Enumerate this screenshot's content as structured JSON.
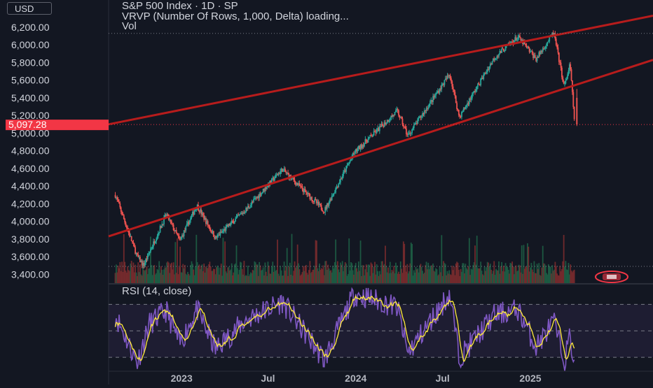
{
  "currency_button": "USD",
  "legend": {
    "title": "S&P 500 Index · 1D · SP",
    "line2": "VRVP (Number Of Rows, 1,000, Delta) loading...",
    "line3": "Vol"
  },
  "rsi_label": "RSI (14, close)",
  "last_price_label": "5,097.28",
  "colors": {
    "background": "#131722",
    "up": "#26a69a",
    "down": "#ef5350",
    "trendline": "#b71c1c",
    "rsi_line": "#7e57c2",
    "rsi_ma": "#ffeb3b",
    "price_tag": "#f23645"
  },
  "chart_data": [
    {
      "type": "candlestick",
      "title": "S&P 500 Index · 1D · SP",
      "ylim": [
        3300,
        6350
      ],
      "y_ticks": [
        "6,200.00",
        "6,000.00",
        "5,800.00",
        "5,600.00",
        "5,400.00",
        "5,200.00",
        "5,000.00",
        "4,800.00",
        "4,600.00",
        "4,400.00",
        "4,200.00",
        "4,000.00",
        "3,800.00",
        "3,600.00",
        "3,400.00"
      ],
      "y_tick_values": [
        6200,
        6000,
        5800,
        5600,
        5400,
        5200,
        5000,
        4800,
        4600,
        4400,
        4200,
        4000,
        3800,
        3600,
        3400
      ],
      "x_ticks": [
        "2023",
        "Jul",
        "2024",
        "Jul",
        "2025"
      ],
      "x_tick_dates": [
        "2023-01-01",
        "2023-07-01",
        "2024-01-01",
        "2024-07-01",
        "2025-01-01"
      ],
      "x_range": [
        "2022-08-01",
        "2025-09-15"
      ],
      "price_path": [
        {
          "date": "2022-08-15",
          "price": 4300
        },
        {
          "date": "2022-09-30",
          "price": 3600
        },
        {
          "date": "2022-10-13",
          "price": 3500
        },
        {
          "date": "2022-11-30",
          "price": 4080
        },
        {
          "date": "2022-12-28",
          "price": 3780
        },
        {
          "date": "2023-02-02",
          "price": 4180
        },
        {
          "date": "2023-03-13",
          "price": 3810
        },
        {
          "date": "2023-05-15",
          "price": 4130
        },
        {
          "date": "2023-07-31",
          "price": 4590
        },
        {
          "date": "2023-10-27",
          "price": 4120
        },
        {
          "date": "2023-12-29",
          "price": 4780
        },
        {
          "date": "2024-03-28",
          "price": 5250
        },
        {
          "date": "2024-04-19",
          "price": 4970
        },
        {
          "date": "2024-07-16",
          "price": 5670
        },
        {
          "date": "2024-08-05",
          "price": 5180
        },
        {
          "date": "2024-10-18",
          "price": 5860
        },
        {
          "date": "2024-12-06",
          "price": 6090
        },
        {
          "date": "2025-01-13",
          "price": 5840
        },
        {
          "date": "2025-02-19",
          "price": 6140
        },
        {
          "date": "2025-03-13",
          "price": 5520
        },
        {
          "date": "2025-03-25",
          "price": 5780
        },
        {
          "date": "2025-04-04",
          "price": 5100
        }
      ],
      "last_price": 5097.28,
      "trendlines": [
        {
          "name": "upper channel",
          "from": {
            "date": "2022-08-01",
            "price": 5100
          },
          "to": {
            "date": "2025-09-15",
            "price": 6330
          }
        },
        {
          "name": "lower channel",
          "from": {
            "date": "2022-08-01",
            "price": 3830
          },
          "to": {
            "date": "2025-09-15",
            "price": 5830
          }
        }
      ],
      "dotted_levels": [
        6130,
        5097.28,
        3490
      ],
      "volume": {
        "series_name": "Vol",
        "relative_range": [
          0.0,
          1.0
        ]
      }
    },
    {
      "type": "line",
      "title": "RSI (14, close)",
      "ylim": [
        20,
        85
      ],
      "bands": [
        70,
        50,
        30
      ],
      "series": [
        {
          "name": "RSI",
          "color": "#7e57c2",
          "values_by_date": [
            {
              "date": "2022-08-15",
              "value": 62
            },
            {
              "date": "2022-09-30",
              "value": 26
            },
            {
              "date": "2022-10-25",
              "value": 55
            },
            {
              "date": "2022-11-30",
              "value": 65
            },
            {
              "date": "2022-12-28",
              "value": 40
            },
            {
              "date": "2023-02-02",
              "value": 66
            },
            {
              "date": "2023-03-13",
              "value": 36
            },
            {
              "date": "2023-05-15",
              "value": 58
            },
            {
              "date": "2023-07-31",
              "value": 72
            },
            {
              "date": "2023-10-27",
              "value": 28
            },
            {
              "date": "2023-12-29",
              "value": 78
            },
            {
              "date": "2024-03-28",
              "value": 68
            },
            {
              "date": "2024-04-19",
              "value": 33
            },
            {
              "date": "2024-07-16",
              "value": 78
            },
            {
              "date": "2024-08-05",
              "value": 30
            },
            {
              "date": "2024-10-18",
              "value": 62
            },
            {
              "date": "2024-12-06",
              "value": 66
            },
            {
              "date": "2025-01-13",
              "value": 38
            },
            {
              "date": "2025-02-19",
              "value": 57
            },
            {
              "date": "2025-03-13",
              "value": 27
            },
            {
              "date": "2025-03-25",
              "value": 46
            },
            {
              "date": "2025-04-04",
              "value": 22
            }
          ]
        }
      ]
    }
  ]
}
